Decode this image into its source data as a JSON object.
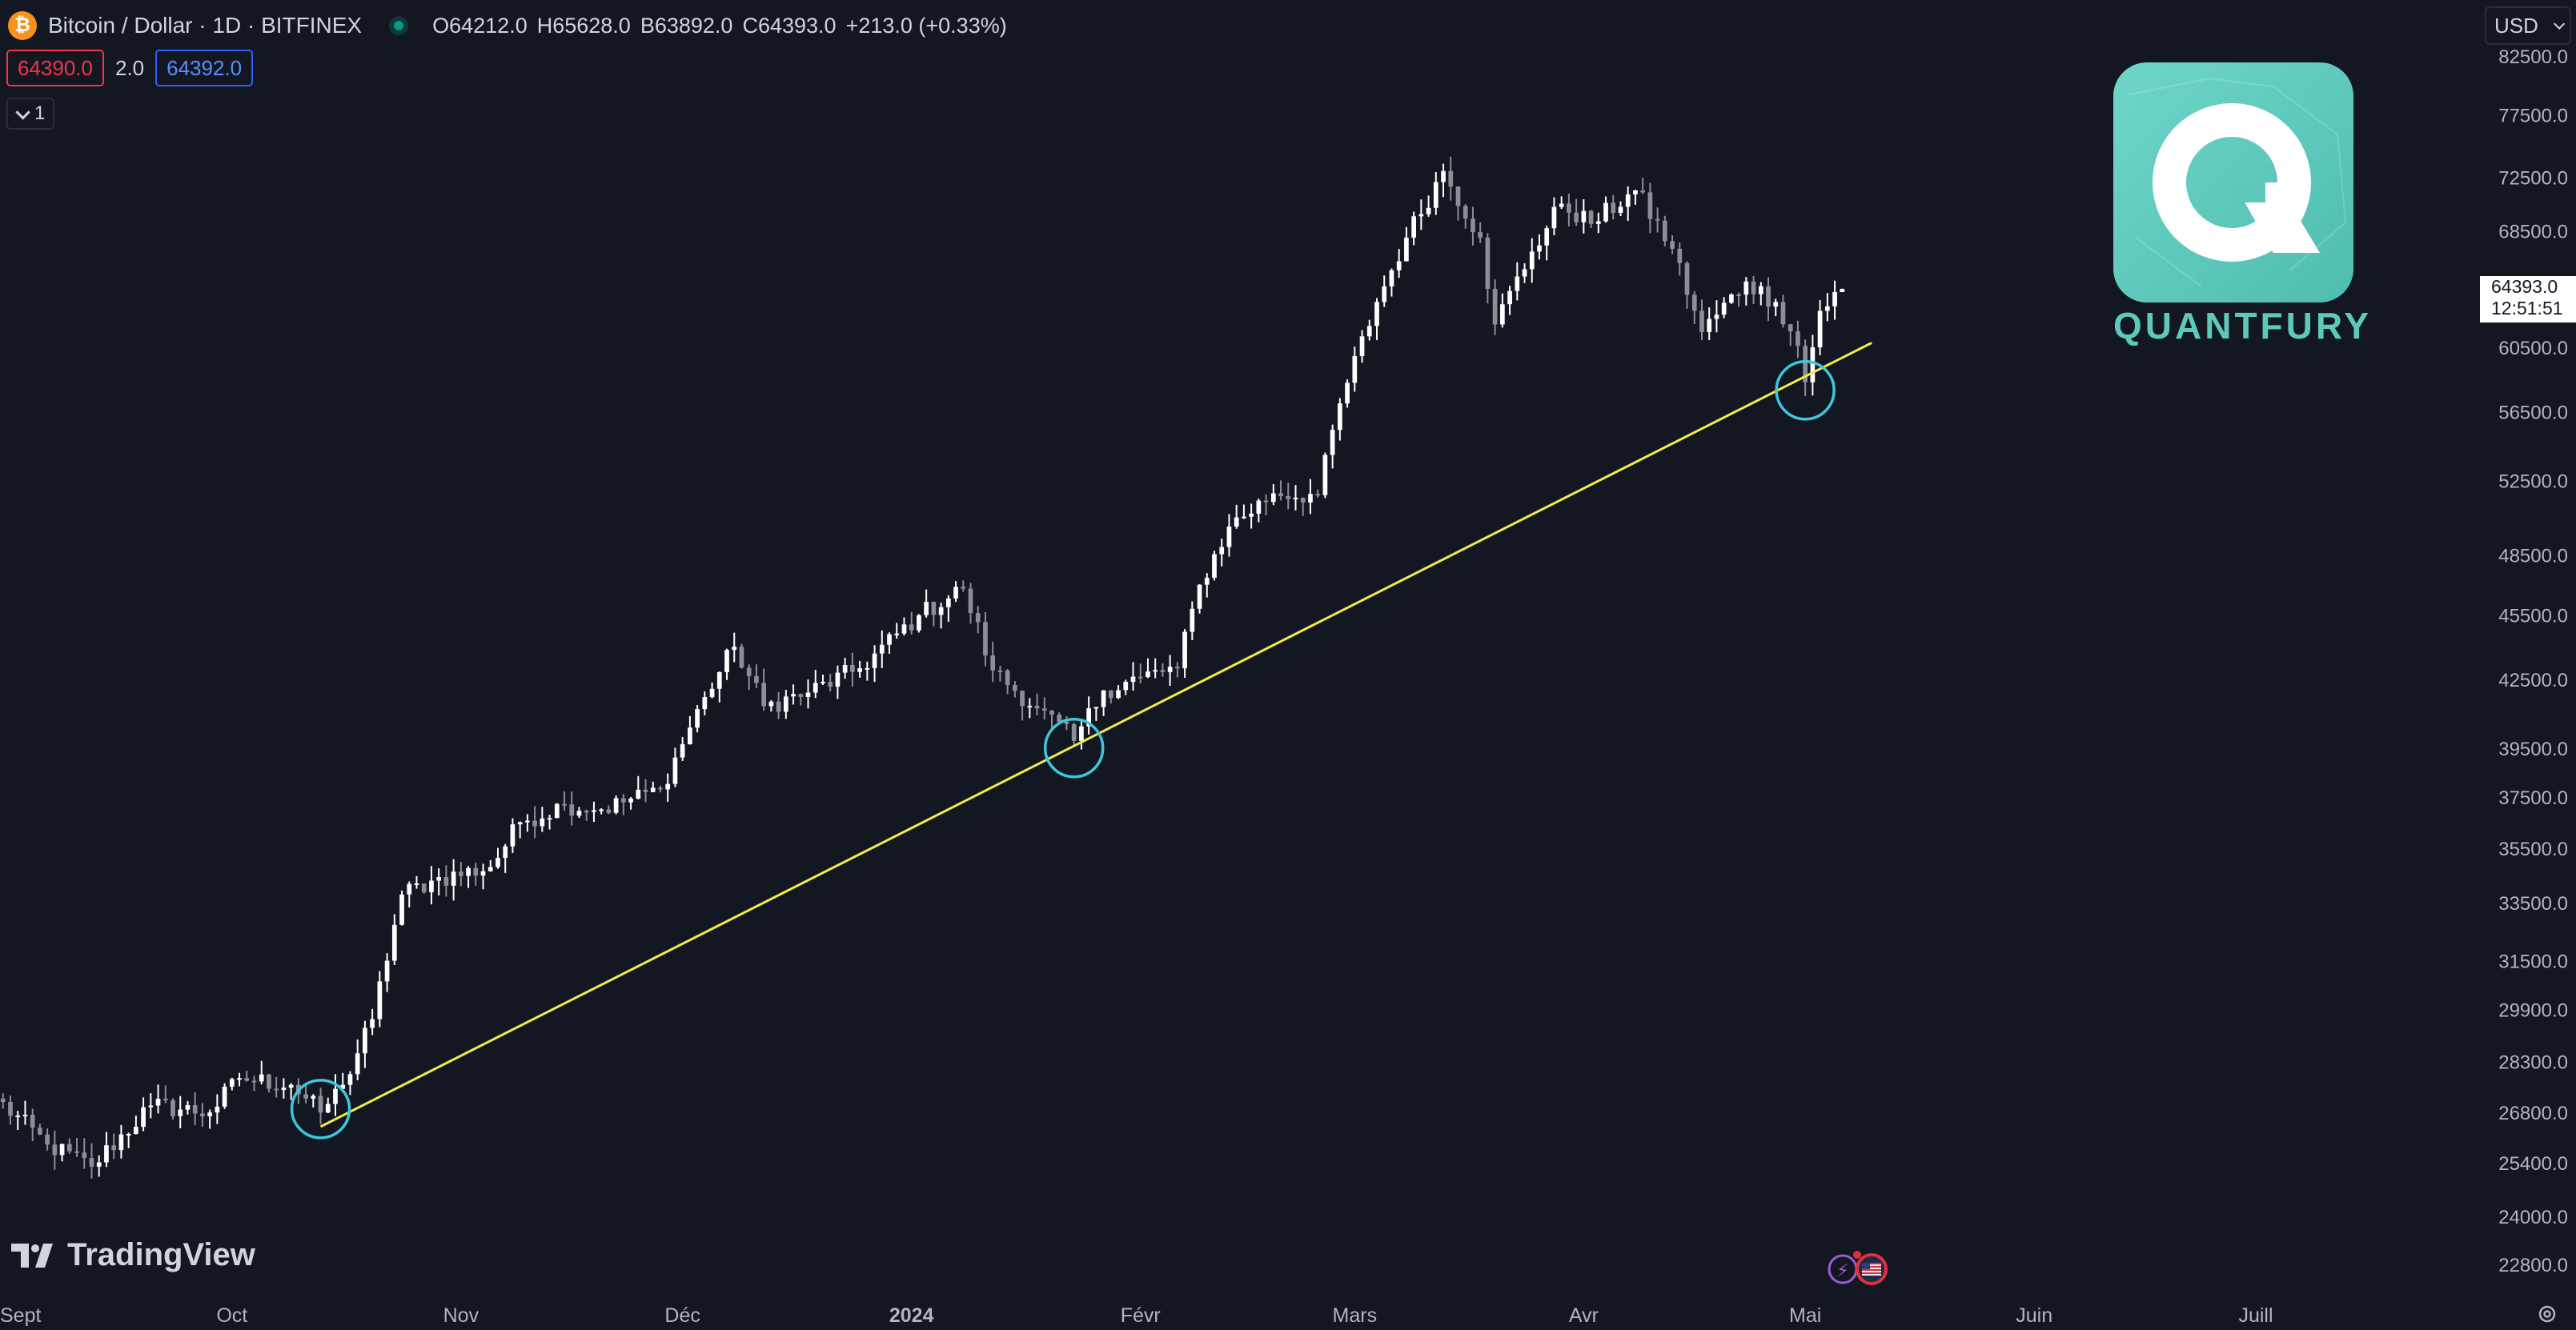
{
  "header": {
    "symbol_title": "Bitcoin / Dollar · 1D · BITFINEX",
    "btc_glyph": "₿",
    "ohlc": {
      "o_label": "O",
      "o_value": "64212.0",
      "h_label": "H",
      "h_value": "65628.0",
      "b_label": "B",
      "b_value": "63892.0",
      "c_label": "C",
      "c_value": "64393.0",
      "change": "+213.0 (+0.33%)"
    },
    "bid": "64390.0",
    "spread": "2.0",
    "ask": "64392.0",
    "indicator_count": "1"
  },
  "currency_selector": "USD",
  "price_tag": {
    "price": "64393.0",
    "countdown": "12:51:51"
  },
  "brand": {
    "quantfury": "QUANTFURY",
    "tradingview": "TradingView"
  },
  "colors": {
    "background": "#131722",
    "trendline": "#f2e94e",
    "circle": "#3ec6de",
    "candle_up": "#ffffff",
    "candle_down": "#8a8e99",
    "bid": "#f23645",
    "ask": "#2962ff"
  },
  "chart_data": {
    "type": "candlestick",
    "symbol": "Bitcoin / Dollar",
    "timeframe": "1D",
    "exchange": "BITFINEX",
    "scale": "log",
    "yticks": [
      82500,
      77500,
      72500,
      68500,
      60500,
      56500,
      52500,
      48500,
      45500,
      42500,
      39500,
      37500,
      35500,
      33500,
      31500,
      29900,
      28300,
      26800,
      25400,
      24000,
      22800
    ],
    "xticks": [
      "Sept",
      "Oct",
      "Nov",
      "Déc",
      "2024",
      "Févr",
      "Mars",
      "Avr",
      "Mai",
      "Juin",
      "Juill"
    ],
    "xtick_dates": [
      "2023-09-01",
      "2023-10-01",
      "2023-11-01",
      "2023-12-01",
      "2024-01-01",
      "2024-02-01",
      "2024-03-01",
      "2024-04-01",
      "2024-05-01",
      "2024-06-01",
      "2024-07-01"
    ],
    "ylim": [
      22000,
      84500
    ],
    "date_range": [
      "2023-08-30",
      "2024-07-05"
    ],
    "close_anchors": [
      [
        "2023-08-30",
        27200
      ],
      [
        "2023-09-06",
        25900
      ],
      [
        "2023-09-12",
        25300
      ],
      [
        "2023-09-20",
        27000
      ],
      [
        "2023-09-28",
        26800
      ],
      [
        "2023-10-02",
        27800
      ],
      [
        "2023-10-09",
        27600
      ],
      [
        "2023-10-13",
        26800
      ],
      [
        "2023-10-16",
        27600
      ],
      [
        "2023-10-20",
        29600
      ],
      [
        "2023-10-24",
        33800
      ],
      [
        "2023-10-28",
        34300
      ],
      [
        "2023-11-05",
        34800
      ],
      [
        "2023-11-09",
        36500
      ],
      [
        "2023-11-15",
        37200
      ],
      [
        "2023-11-20",
        37000
      ],
      [
        "2023-11-28",
        37800
      ],
      [
        "2023-12-04",
        41700
      ],
      [
        "2023-12-08",
        44000
      ],
      [
        "2023-12-12",
        41300
      ],
      [
        "2023-12-18",
        41900
      ],
      [
        "2023-12-25",
        43000
      ],
      [
        "2024-01-02",
        45500
      ],
      [
        "2024-01-08",
        46800
      ],
      [
        "2024-01-12",
        42900
      ],
      [
        "2024-01-18",
        41200
      ],
      [
        "2024-01-23",
        39800
      ],
      [
        "2024-01-27",
        42000
      ],
      [
        "2024-02-01",
        42600
      ],
      [
        "2024-02-06",
        43000
      ],
      [
        "2024-02-09",
        47000
      ],
      [
        "2024-02-13",
        50000
      ],
      [
        "2024-02-19",
        51800
      ],
      [
        "2024-02-25",
        51700
      ],
      [
        "2024-02-28",
        57000
      ],
      [
        "2024-03-04",
        63500
      ],
      [
        "2024-03-08",
        68000
      ],
      [
        "2024-03-13",
        73000
      ],
      [
        "2024-03-18",
        68000
      ],
      [
        "2024-03-20",
        62000
      ],
      [
        "2024-03-25",
        67000
      ],
      [
        "2024-03-29",
        70500
      ],
      [
        "2024-04-02",
        69000
      ],
      [
        "2024-04-08",
        71500
      ],
      [
        "2024-04-13",
        67200
      ],
      [
        "2024-04-17",
        61500
      ],
      [
        "2024-04-23",
        64900
      ],
      [
        "2024-04-27",
        63500
      ],
      [
        "2024-04-30",
        60600
      ],
      [
        "2024-05-01",
        58300
      ],
      [
        "2024-05-03",
        62900
      ],
      [
        "2024-05-06",
        64393
      ]
    ],
    "trendline": {
      "from": [
        "2023-10-13",
        26400
      ],
      "to": [
        "2024-05-10",
        60800
      ]
    },
    "touch_points": [
      [
        "2023-10-13",
        26900
      ],
      [
        "2024-01-23",
        39500
      ],
      [
        "2024-05-01",
        57800
      ]
    ],
    "last_close": 64393.0
  }
}
